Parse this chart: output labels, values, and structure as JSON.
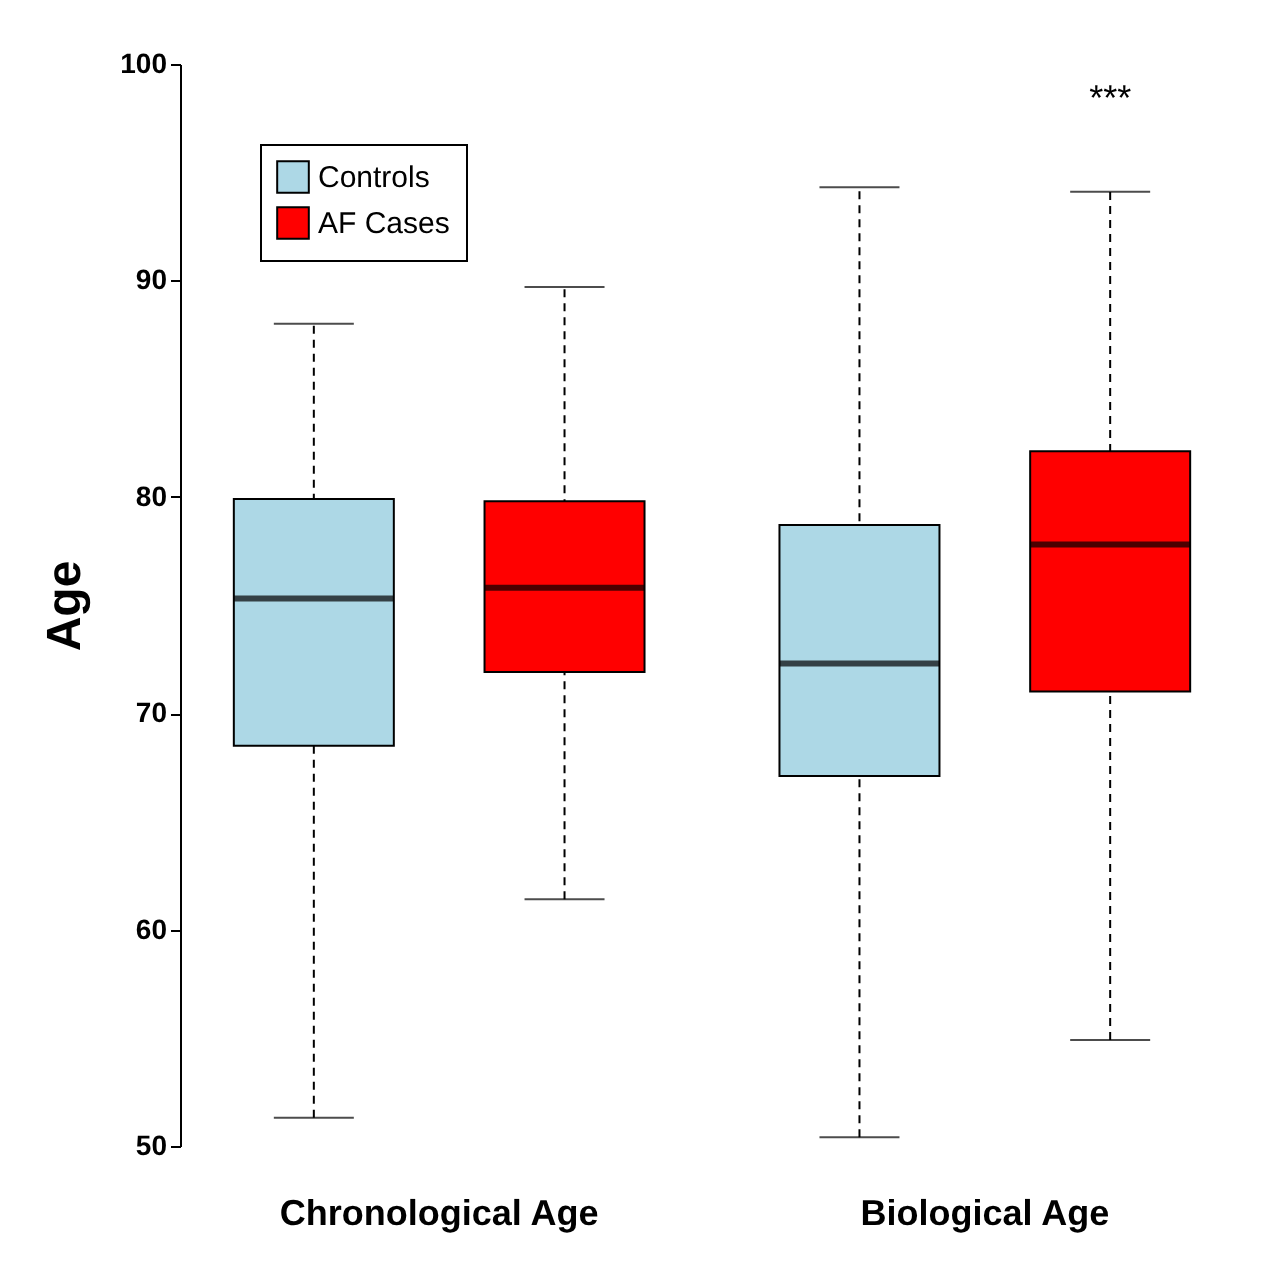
{
  "chart_data": {
    "type": "box",
    "ylabel": "Age",
    "categories": [
      "Chronological Age",
      "Biological Age"
    ],
    "series": [
      {
        "name": "Controls",
        "color": "#add8e6",
        "boxes": [
          {
            "low": 51.3,
            "q1": 68.5,
            "median": 75.3,
            "q3": 79.9,
            "high": 88.0
          },
          {
            "low": 50.4,
            "q1": 67.1,
            "median": 72.3,
            "q3": 78.7,
            "high": 94.3
          }
        ]
      },
      {
        "name": "AF Cases",
        "color": "#ff0000",
        "boxes": [
          {
            "low": 61.4,
            "q1": 71.9,
            "median": 75.8,
            "q3": 79.8,
            "high": 89.7
          },
          {
            "low": 54.9,
            "q1": 71.0,
            "median": 77.8,
            "q3": 82.1,
            "high": 94.1
          }
        ]
      }
    ],
    "ylim": [
      50,
      100
    ],
    "yticks": [
      50,
      60,
      70,
      80,
      90,
      100
    ],
    "annotations": [
      "***"
    ],
    "legend": "top left",
    "grid": false,
    "line_style": "dashed"
  }
}
